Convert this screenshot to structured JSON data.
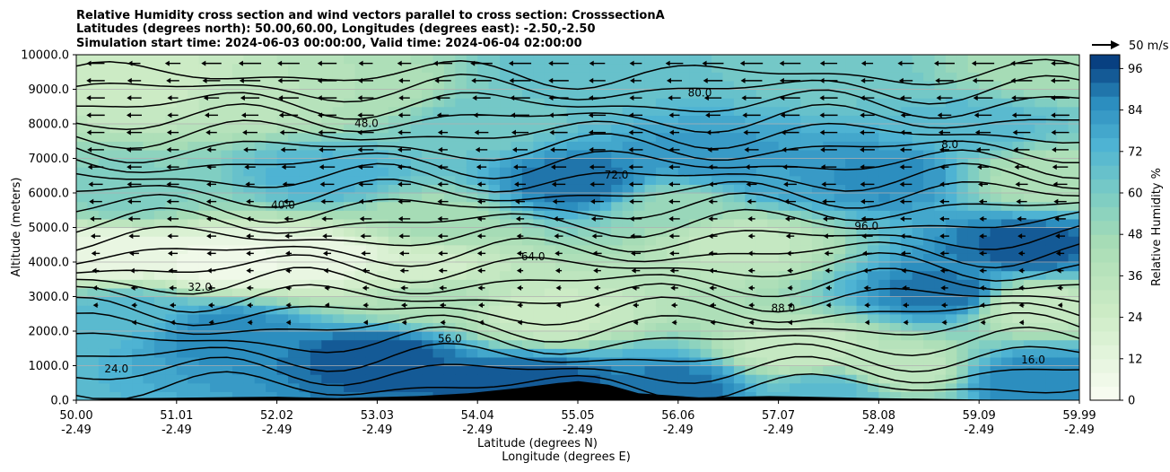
{
  "chart_data": {
    "type": "heatmap",
    "title_lines": [
      "Relative Humidity cross section and wind vectors parallel to cross section: CrosssectionA",
      "Latitudes (degrees north): 50.00,60.00, Longitudes (degrees east): -2.50,-2.50",
      "Simulation start time: 2024-06-03 00:00:00, Valid time: 2024-06-04 02:00:00"
    ],
    "xlabel": "Latitude (degrees N)",
    "xlabel2": "Longitude (degrees E)",
    "ylabel": "Altitude (meters)",
    "xlim": [
      50.0,
      59.99
    ],
    "ylim": [
      0,
      10000
    ],
    "x_ticks": [
      {
        "lat": "50.00",
        "lon": "-2.49"
      },
      {
        "lat": "51.01",
        "lon": "-2.49"
      },
      {
        "lat": "52.02",
        "lon": "-2.49"
      },
      {
        "lat": "53.03",
        "lon": "-2.49"
      },
      {
        "lat": "54.04",
        "lon": "-2.49"
      },
      {
        "lat": "55.05",
        "lon": "-2.49"
      },
      {
        "lat": "56.06",
        "lon": "-2.49"
      },
      {
        "lat": "57.07",
        "lon": "-2.49"
      },
      {
        "lat": "58.08",
        "lon": "-2.49"
      },
      {
        "lat": "59.09",
        "lon": "-2.49"
      },
      {
        "lat": "59.99",
        "lon": "-2.49"
      }
    ],
    "y_ticks": [
      "0.0",
      "1000.0",
      "2000.0",
      "3000.0",
      "4000.0",
      "5000.0",
      "6000.0",
      "7000.0",
      "8000.0",
      "9000.0",
      "10000.0"
    ],
    "grid": "horizontal",
    "colorbar": {
      "label": "Relative Humidity %",
      "ticks": [
        "0",
        "12",
        "24",
        "36",
        "48",
        "60",
        "72",
        "84",
        "96"
      ],
      "min": 0,
      "max": 100,
      "levels": 25,
      "cmap_start": "#f7fcf0",
      "cmap_mid": "#7bccc4",
      "cmap_end": "#084081"
    },
    "quiver_key": "50 m/s",
    "contour_labels": [
      "24.0",
      "32.0",
      "40.0",
      "48.0",
      "56.0",
      "64.0",
      "72.0",
      "80.0",
      "88.0",
      "96.0",
      "8.0",
      "16.0"
    ],
    "rh_points": [
      {
        "lat": 50.3,
        "alt": 4200,
        "rh": 8
      },
      {
        "lat": 51.5,
        "alt": 4000,
        "rh": 6
      },
      {
        "lat": 52.5,
        "alt": 4100,
        "rh": 8
      },
      {
        "lat": 53.3,
        "alt": 3800,
        "rh": 20
      },
      {
        "lat": 50.8,
        "alt": 9200,
        "rh": 26
      },
      {
        "lat": 51.8,
        "alt": 8800,
        "rh": 34
      },
      {
        "lat": 52.8,
        "alt": 9000,
        "rh": 40
      },
      {
        "lat": 54.0,
        "alt": 8000,
        "rh": 62
      },
      {
        "lat": 55.0,
        "alt": 6300,
        "rh": 92
      },
      {
        "lat": 55.0,
        "alt": 9500,
        "rh": 66
      },
      {
        "lat": 56.3,
        "alt": 7000,
        "rh": 82
      },
      {
        "lat": 57.0,
        "alt": 6500,
        "rh": 80
      },
      {
        "lat": 58.0,
        "alt": 6500,
        "rh": 86
      },
      {
        "lat": 59.0,
        "alt": 8000,
        "rh": 70
      },
      {
        "lat": 56.6,
        "alt": 4600,
        "rh": 30
      },
      {
        "lat": 57.2,
        "alt": 1400,
        "rh": 28
      },
      {
        "lat": 58.2,
        "alt": 900,
        "rh": 32
      },
      {
        "lat": 59.5,
        "alt": 2800,
        "rh": 28
      },
      {
        "lat": 58.7,
        "alt": 3100,
        "rh": 92
      },
      {
        "lat": 59.5,
        "alt": 4400,
        "rh": 94
      },
      {
        "lat": 54.7,
        "alt": 2500,
        "rh": 26
      },
      {
        "lat": 53.5,
        "alt": 3000,
        "rh": 42
      },
      {
        "lat": 50.5,
        "alt": 2500,
        "rh": 70
      },
      {
        "lat": 51.5,
        "alt": 2000,
        "rh": 88
      },
      {
        "lat": 53.0,
        "alt": 1300,
        "rh": 96
      },
      {
        "lat": 54.5,
        "alt": 500,
        "rh": 96
      },
      {
        "lat": 56.0,
        "alt": 400,
        "rh": 90
      },
      {
        "lat": 57.5,
        "alt": 300,
        "rh": 70
      },
      {
        "lat": 59.5,
        "alt": 600,
        "rh": 88
      },
      {
        "lat": 50.5,
        "alt": 6000,
        "rh": 58
      },
      {
        "lat": 52.5,
        "alt": 6500,
        "rh": 74
      },
      {
        "lat": 53.5,
        "alt": 5200,
        "rh": 45
      },
      {
        "lat": 56.0,
        "alt": 5600,
        "rh": 50
      },
      {
        "lat": 59.7,
        "alt": 6500,
        "rh": 40
      },
      {
        "lat": 57.5,
        "alt": 9500,
        "rh": 62
      },
      {
        "lat": 59.6,
        "alt": 9600,
        "rh": 45
      }
    ],
    "wind": {
      "description": "vectors parallel to cross section, mostly pointing toward lower latitudes (westward-left), strongest aloft",
      "reference_speed_ms": 50
    },
    "terrain": [
      {
        "lat": 50.0,
        "alt": 0
      },
      {
        "lat": 50.6,
        "alt": 60
      },
      {
        "lat": 51.3,
        "alt": 80
      },
      {
        "lat": 52.0,
        "alt": 100
      },
      {
        "lat": 52.6,
        "alt": 60
      },
      {
        "lat": 53.4,
        "alt": 120
      },
      {
        "lat": 53.9,
        "alt": 200
      },
      {
        "lat": 54.4,
        "alt": 350
      },
      {
        "lat": 54.8,
        "alt": 500
      },
      {
        "lat": 55.0,
        "alt": 550
      },
      {
        "lat": 55.3,
        "alt": 450
      },
      {
        "lat": 55.6,
        "alt": 200
      },
      {
        "lat": 56.2,
        "alt": 80
      },
      {
        "lat": 56.9,
        "alt": 120
      },
      {
        "lat": 57.3,
        "alt": 100
      },
      {
        "lat": 58.0,
        "alt": 60
      },
      {
        "lat": 59.0,
        "alt": 20
      },
      {
        "lat": 59.99,
        "alt": 0
      }
    ]
  }
}
